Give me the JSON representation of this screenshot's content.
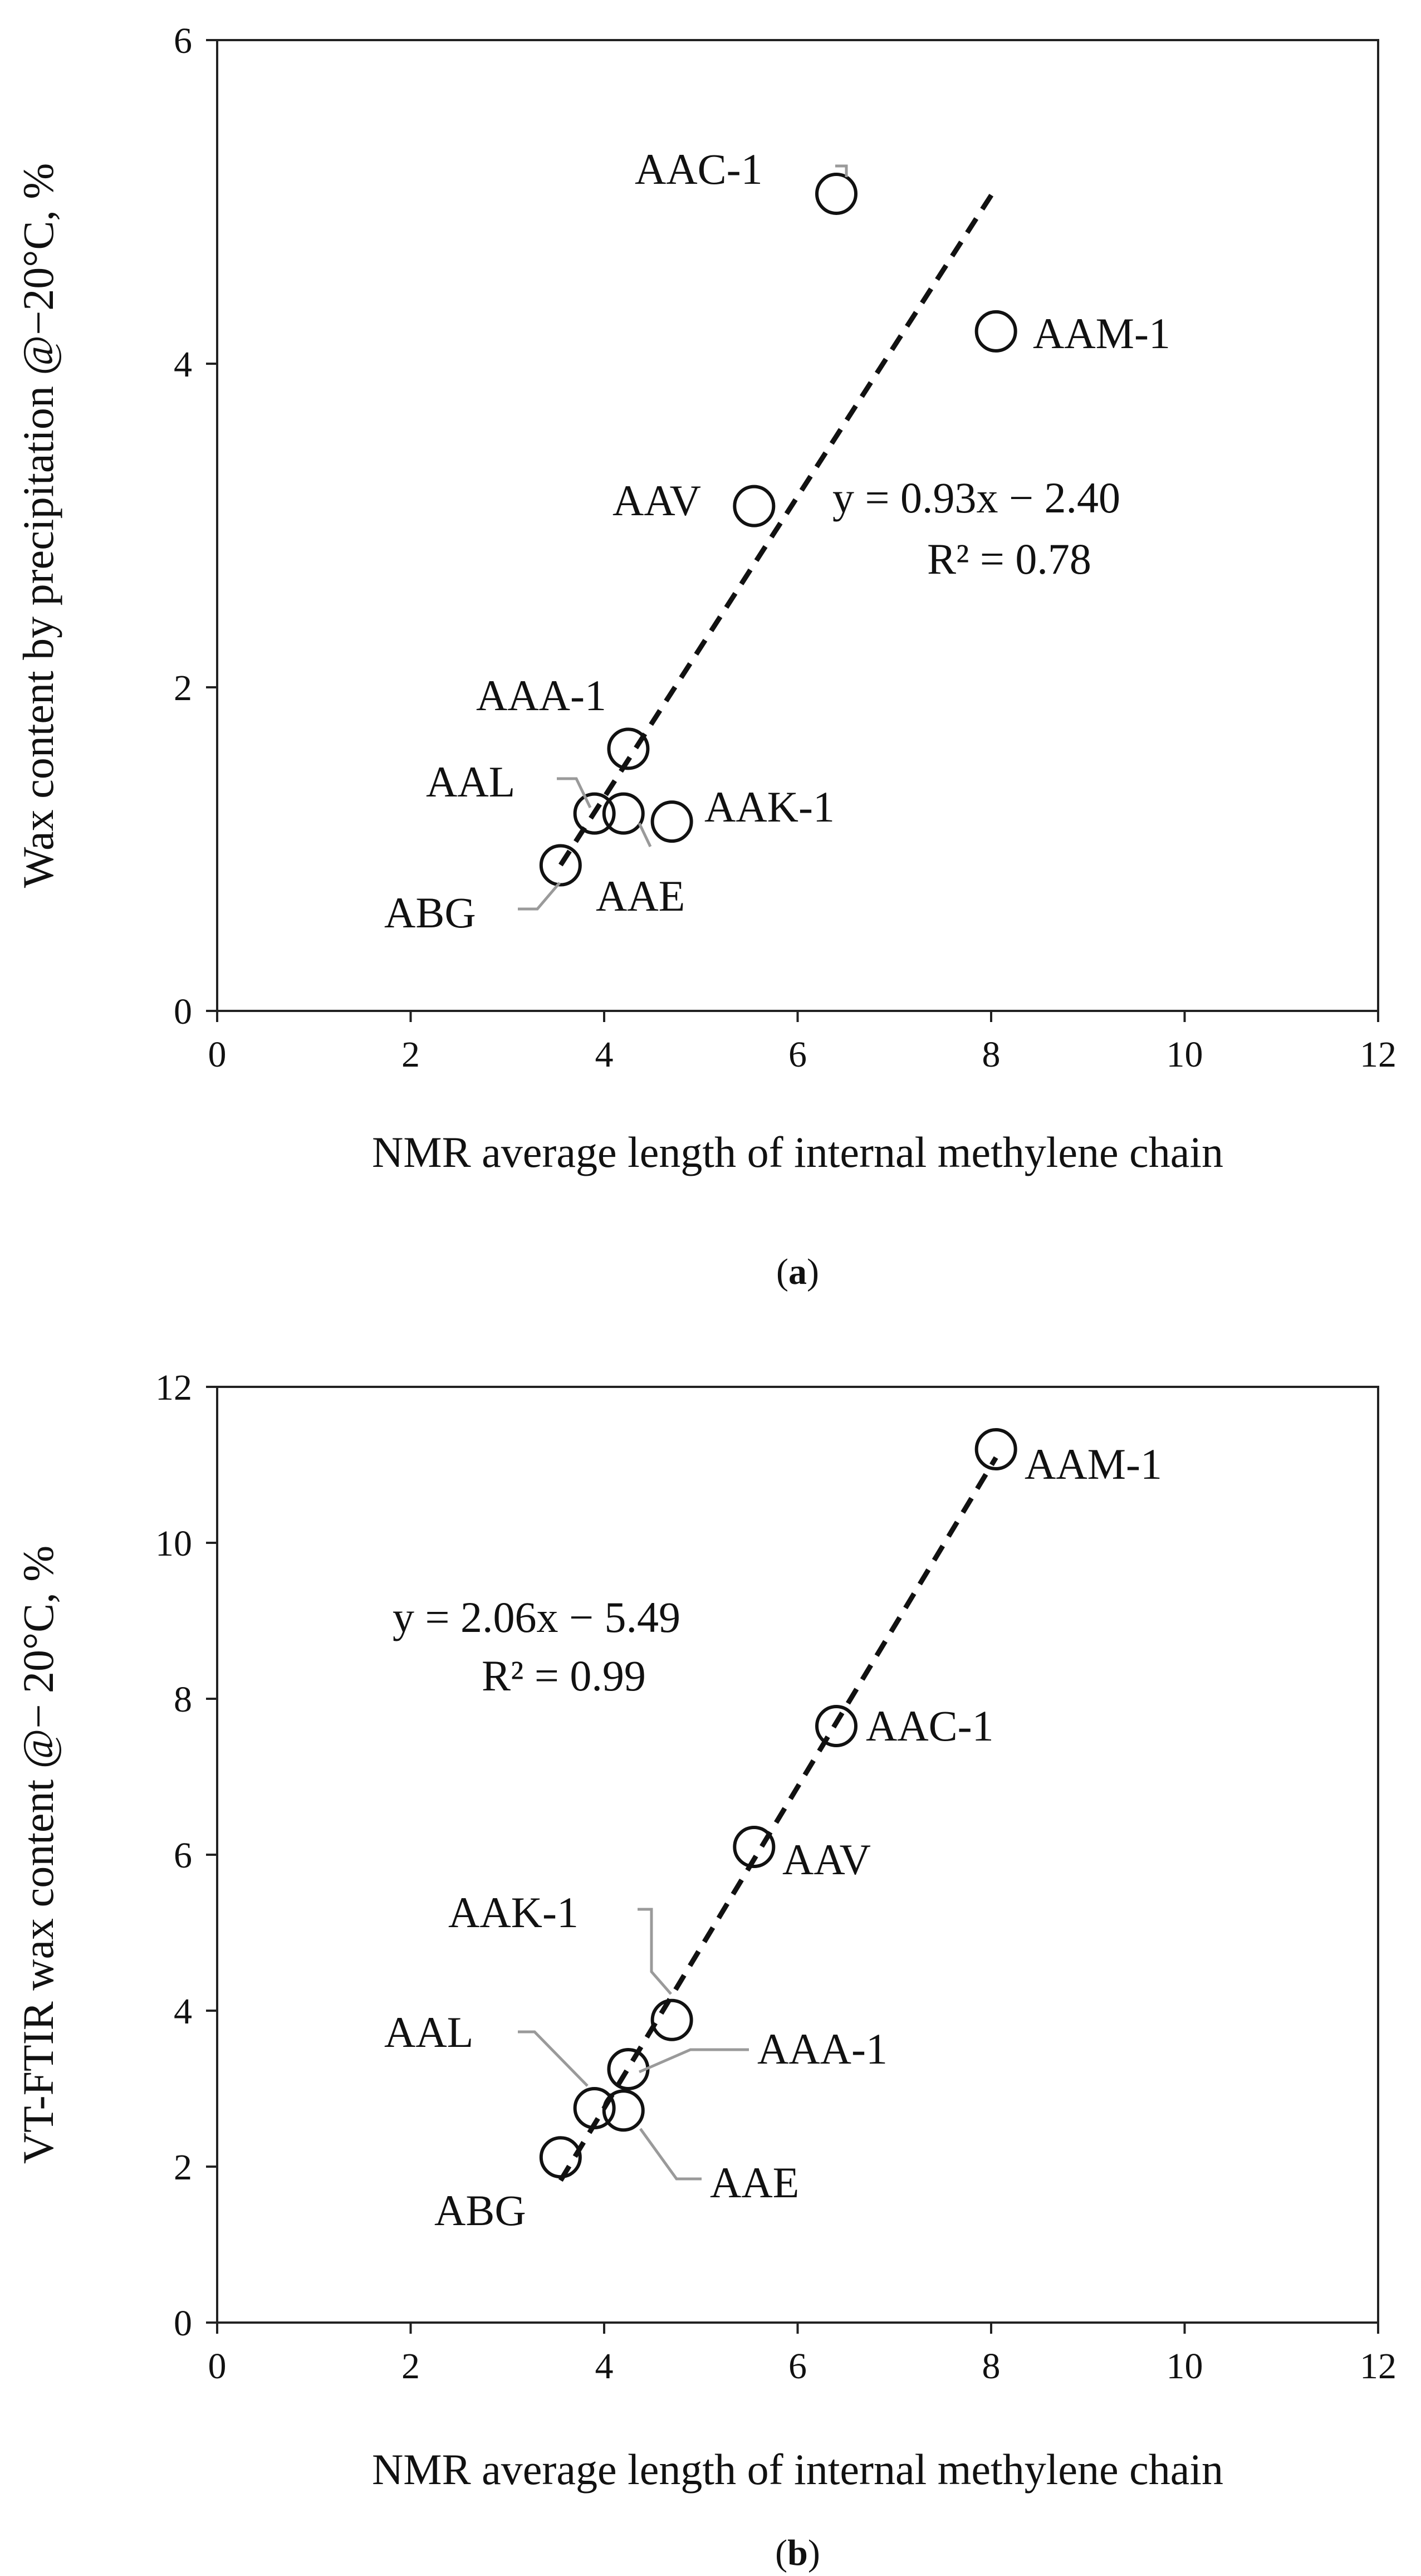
{
  "chart_data": [
    {
      "type": "scatter",
      "panel": "a",
      "caption": {
        "open": "(",
        "letter": "a",
        "close": ")"
      },
      "xlabel": "NMR average length of internal methylene chain",
      "ylabel": "Wax content by precipitation @−20°C, %",
      "xlim": [
        0,
        12
      ],
      "ylim": [
        0,
        6
      ],
      "xticks": [
        0,
        2,
        4,
        6,
        8,
        10,
        12
      ],
      "yticks": [
        0,
        2,
        4,
        6
      ],
      "grid": false,
      "points": [
        {
          "name": "AAC-1",
          "x": 6.4,
          "y": 5.05
        },
        {
          "name": "AAM-1",
          "x": 8.05,
          "y": 4.2
        },
        {
          "name": "AAV",
          "x": 5.55,
          "y": 3.12
        },
        {
          "name": "AAA-1",
          "x": 4.25,
          "y": 1.62
        },
        {
          "name": "AAL",
          "x": 3.9,
          "y": 1.22
        },
        {
          "name": "AAE",
          "x": 4.2,
          "y": 1.22
        },
        {
          "name": "AAK-1",
          "x": 4.7,
          "y": 1.17
        },
        {
          "name": "ABG",
          "x": 3.55,
          "y": 0.9
        }
      ],
      "trendline": {
        "slope": 0.93,
        "intercept": -2.4,
        "x_range": [
          3.55,
          8.05
        ]
      },
      "equation": "y = 0.93x −  2.40",
      "r_squared": "R² = 0.78"
    },
    {
      "type": "scatter",
      "panel": "b",
      "caption": {
        "open": "(",
        "letter": "b",
        "close": ")"
      },
      "xlabel": "NMR average length of internal methylene chain",
      "ylabel": "VT-FTIR wax content @− 20°C, %",
      "xlim": [
        0,
        12
      ],
      "ylim": [
        0,
        12
      ],
      "xticks": [
        0,
        2,
        4,
        6,
        8,
        10,
        12
      ],
      "yticks": [
        0,
        2,
        4,
        6,
        8,
        10,
        12
      ],
      "grid": false,
      "points": [
        {
          "name": "AAM-1",
          "x": 8.05,
          "y": 11.2
        },
        {
          "name": "AAC-1",
          "x": 6.4,
          "y": 7.65
        },
        {
          "name": "AAV",
          "x": 5.55,
          "y": 6.1
        },
        {
          "name": "AAK-1",
          "x": 4.7,
          "y": 3.88
        },
        {
          "name": "AAA-1",
          "x": 4.25,
          "y": 3.25
        },
        {
          "name": "AAL",
          "x": 3.9,
          "y": 2.75
        },
        {
          "name": "AAE",
          "x": 4.2,
          "y": 2.72
        },
        {
          "name": "ABG",
          "x": 3.55,
          "y": 2.12
        }
      ],
      "trendline": {
        "slope": 2.06,
        "intercept": -5.49,
        "x_range": [
          3.55,
          8.05
        ]
      },
      "equation": "y = 2.06x −  5.49",
      "r_squared": "R² = 0.99"
    }
  ]
}
